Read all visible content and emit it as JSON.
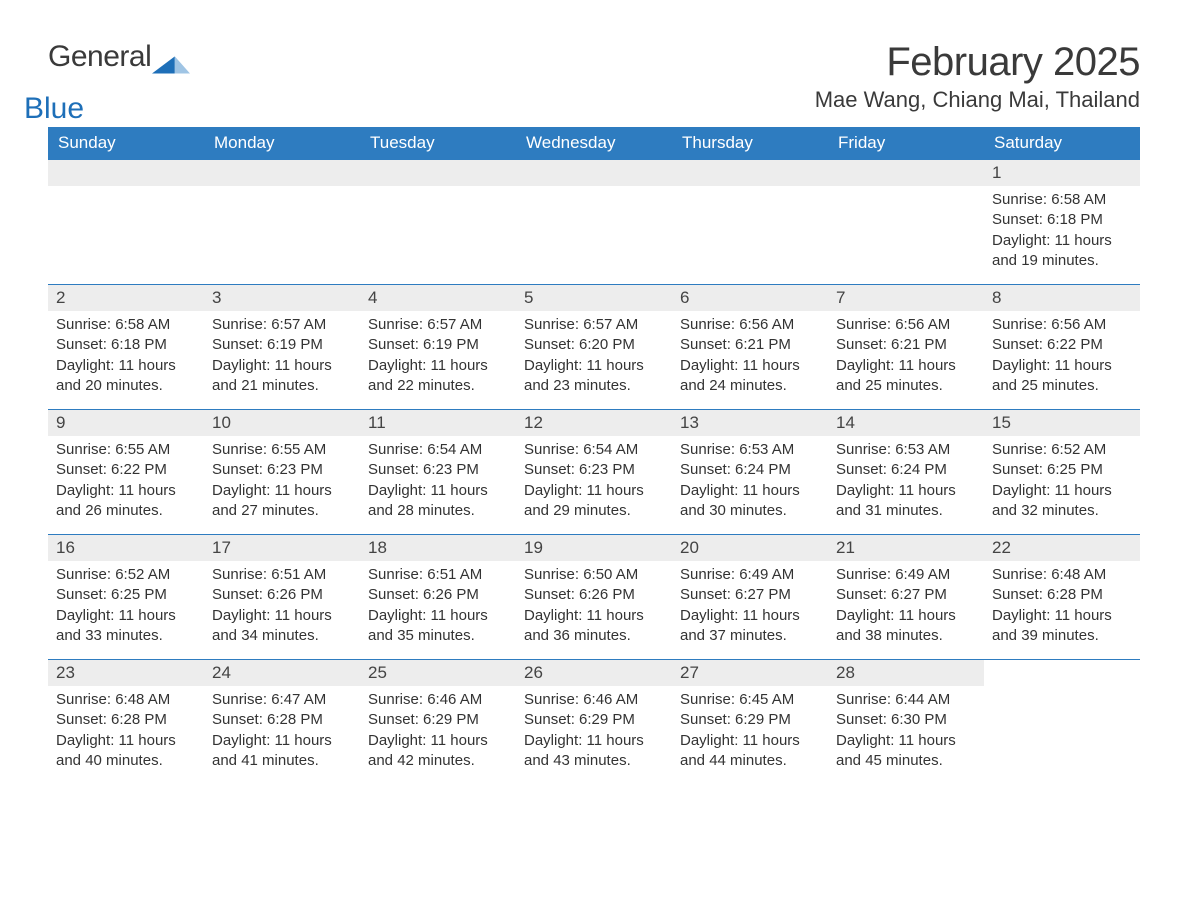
{
  "logo": {
    "general": "General",
    "blue": "Blue",
    "tri_color": "#1e6fb8"
  },
  "title": "February 2025",
  "location": "Mae Wang, Chiang Mai, Thailand",
  "header_bg": "#2e7cc0",
  "header_fg": "#ffffff",
  "strip_bg": "#ededed",
  "border_color": "#2e7cc0",
  "columns": [
    "Sunday",
    "Monday",
    "Tuesday",
    "Wednesday",
    "Thursday",
    "Friday",
    "Saturday"
  ],
  "weeks": [
    [
      null,
      null,
      null,
      null,
      null,
      null,
      {
        "n": "1",
        "sunrise": "Sunrise: 6:58 AM",
        "sunset": "Sunset: 6:18 PM",
        "dl1": "Daylight: 11 hours",
        "dl2": "and 19 minutes."
      }
    ],
    [
      {
        "n": "2",
        "sunrise": "Sunrise: 6:58 AM",
        "sunset": "Sunset: 6:18 PM",
        "dl1": "Daylight: 11 hours",
        "dl2": "and 20 minutes."
      },
      {
        "n": "3",
        "sunrise": "Sunrise: 6:57 AM",
        "sunset": "Sunset: 6:19 PM",
        "dl1": "Daylight: 11 hours",
        "dl2": "and 21 minutes."
      },
      {
        "n": "4",
        "sunrise": "Sunrise: 6:57 AM",
        "sunset": "Sunset: 6:19 PM",
        "dl1": "Daylight: 11 hours",
        "dl2": "and 22 minutes."
      },
      {
        "n": "5",
        "sunrise": "Sunrise: 6:57 AM",
        "sunset": "Sunset: 6:20 PM",
        "dl1": "Daylight: 11 hours",
        "dl2": "and 23 minutes."
      },
      {
        "n": "6",
        "sunrise": "Sunrise: 6:56 AM",
        "sunset": "Sunset: 6:21 PM",
        "dl1": "Daylight: 11 hours",
        "dl2": "and 24 minutes."
      },
      {
        "n": "7",
        "sunrise": "Sunrise: 6:56 AM",
        "sunset": "Sunset: 6:21 PM",
        "dl1": "Daylight: 11 hours",
        "dl2": "and 25 minutes."
      },
      {
        "n": "8",
        "sunrise": "Sunrise: 6:56 AM",
        "sunset": "Sunset: 6:22 PM",
        "dl1": "Daylight: 11 hours",
        "dl2": "and 25 minutes."
      }
    ],
    [
      {
        "n": "9",
        "sunrise": "Sunrise: 6:55 AM",
        "sunset": "Sunset: 6:22 PM",
        "dl1": "Daylight: 11 hours",
        "dl2": "and 26 minutes."
      },
      {
        "n": "10",
        "sunrise": "Sunrise: 6:55 AM",
        "sunset": "Sunset: 6:23 PM",
        "dl1": "Daylight: 11 hours",
        "dl2": "and 27 minutes."
      },
      {
        "n": "11",
        "sunrise": "Sunrise: 6:54 AM",
        "sunset": "Sunset: 6:23 PM",
        "dl1": "Daylight: 11 hours",
        "dl2": "and 28 minutes."
      },
      {
        "n": "12",
        "sunrise": "Sunrise: 6:54 AM",
        "sunset": "Sunset: 6:23 PM",
        "dl1": "Daylight: 11 hours",
        "dl2": "and 29 minutes."
      },
      {
        "n": "13",
        "sunrise": "Sunrise: 6:53 AM",
        "sunset": "Sunset: 6:24 PM",
        "dl1": "Daylight: 11 hours",
        "dl2": "and 30 minutes."
      },
      {
        "n": "14",
        "sunrise": "Sunrise: 6:53 AM",
        "sunset": "Sunset: 6:24 PM",
        "dl1": "Daylight: 11 hours",
        "dl2": "and 31 minutes."
      },
      {
        "n": "15",
        "sunrise": "Sunrise: 6:52 AM",
        "sunset": "Sunset: 6:25 PM",
        "dl1": "Daylight: 11 hours",
        "dl2": "and 32 minutes."
      }
    ],
    [
      {
        "n": "16",
        "sunrise": "Sunrise: 6:52 AM",
        "sunset": "Sunset: 6:25 PM",
        "dl1": "Daylight: 11 hours",
        "dl2": "and 33 minutes."
      },
      {
        "n": "17",
        "sunrise": "Sunrise: 6:51 AM",
        "sunset": "Sunset: 6:26 PM",
        "dl1": "Daylight: 11 hours",
        "dl2": "and 34 minutes."
      },
      {
        "n": "18",
        "sunrise": "Sunrise: 6:51 AM",
        "sunset": "Sunset: 6:26 PM",
        "dl1": "Daylight: 11 hours",
        "dl2": "and 35 minutes."
      },
      {
        "n": "19",
        "sunrise": "Sunrise: 6:50 AM",
        "sunset": "Sunset: 6:26 PM",
        "dl1": "Daylight: 11 hours",
        "dl2": "and 36 minutes."
      },
      {
        "n": "20",
        "sunrise": "Sunrise: 6:49 AM",
        "sunset": "Sunset: 6:27 PM",
        "dl1": "Daylight: 11 hours",
        "dl2": "and 37 minutes."
      },
      {
        "n": "21",
        "sunrise": "Sunrise: 6:49 AM",
        "sunset": "Sunset: 6:27 PM",
        "dl1": "Daylight: 11 hours",
        "dl2": "and 38 minutes."
      },
      {
        "n": "22",
        "sunrise": "Sunrise: 6:48 AM",
        "sunset": "Sunset: 6:28 PM",
        "dl1": "Daylight: 11 hours",
        "dl2": "and 39 minutes."
      }
    ],
    [
      {
        "n": "23",
        "sunrise": "Sunrise: 6:48 AM",
        "sunset": "Sunset: 6:28 PM",
        "dl1": "Daylight: 11 hours",
        "dl2": "and 40 minutes."
      },
      {
        "n": "24",
        "sunrise": "Sunrise: 6:47 AM",
        "sunset": "Sunset: 6:28 PM",
        "dl1": "Daylight: 11 hours",
        "dl2": "and 41 minutes."
      },
      {
        "n": "25",
        "sunrise": "Sunrise: 6:46 AM",
        "sunset": "Sunset: 6:29 PM",
        "dl1": "Daylight: 11 hours",
        "dl2": "and 42 minutes."
      },
      {
        "n": "26",
        "sunrise": "Sunrise: 6:46 AM",
        "sunset": "Sunset: 6:29 PM",
        "dl1": "Daylight: 11 hours",
        "dl2": "and 43 minutes."
      },
      {
        "n": "27",
        "sunrise": "Sunrise: 6:45 AM",
        "sunset": "Sunset: 6:29 PM",
        "dl1": "Daylight: 11 hours",
        "dl2": "and 44 minutes."
      },
      {
        "n": "28",
        "sunrise": "Sunrise: 6:44 AM",
        "sunset": "Sunset: 6:30 PM",
        "dl1": "Daylight: 11 hours",
        "dl2": "and 45 minutes."
      },
      null
    ]
  ]
}
